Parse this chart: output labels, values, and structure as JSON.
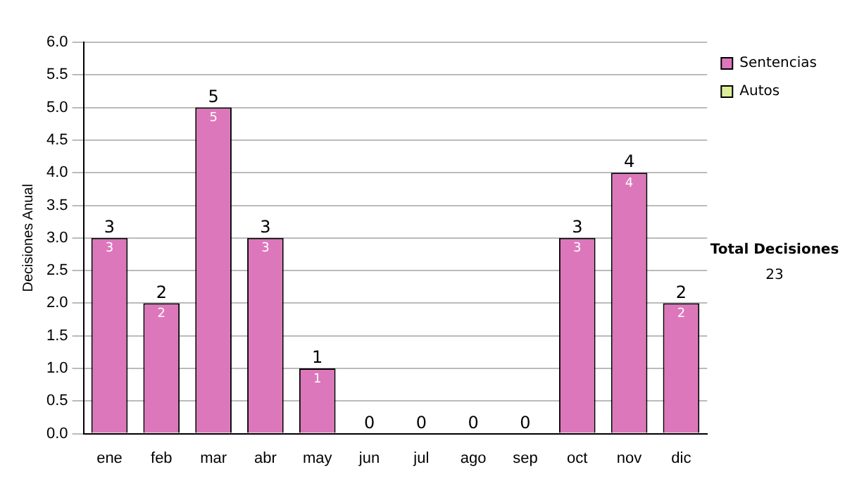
{
  "chart_data": {
    "type": "bar",
    "stacked": true,
    "ylabel": "Decisiones Anual",
    "categories": [
      "ene",
      "feb",
      "mar",
      "abr",
      "may",
      "jun",
      "jul",
      "ago",
      "sep",
      "oct",
      "nov",
      "dic"
    ],
    "series": [
      {
        "name": "Sentencias",
        "color": "#dd77bb",
        "values": [
          3,
          2,
          5,
          3,
          1,
          0,
          0,
          0,
          0,
          3,
          4,
          2
        ],
        "value_labels": [
          "3",
          "2",
          "5",
          "3",
          "1",
          null,
          null,
          null,
          null,
          "3",
          "4",
          "2"
        ]
      },
      {
        "name": "Autos",
        "color": "#ddee99",
        "values": [
          0,
          0,
          0,
          0,
          0,
          0,
          0,
          0,
          0,
          0,
          0,
          0
        ]
      }
    ],
    "totals": [
      "3",
      "2",
      "5",
      "3",
      "1",
      "0",
      "0",
      "0",
      "0",
      "3",
      "4",
      "2"
    ],
    "ylim": [
      0,
      6
    ],
    "yticks": [
      {
        "value": 0,
        "label": "0.0"
      },
      {
        "value": 0.5,
        "label": "0.5"
      },
      {
        "value": 1,
        "label": "1.0"
      },
      {
        "value": 1.5,
        "label": "1.5"
      },
      {
        "value": 2,
        "label": "2.0"
      },
      {
        "value": 2.5,
        "label": "2.5"
      },
      {
        "value": 3,
        "label": "3.0"
      },
      {
        "value": 3.5,
        "label": "3.5"
      },
      {
        "value": 4,
        "label": "4.0"
      },
      {
        "value": 4.5,
        "label": "4.5"
      },
      {
        "value": 5,
        "label": "5.0"
      },
      {
        "value": 5.5,
        "label": "5.5"
      },
      {
        "value": 6,
        "label": "6.0"
      }
    ],
    "grid": "y",
    "legend": "right",
    "annotations": [
      "Total Decisiones",
      "23"
    ]
  }
}
